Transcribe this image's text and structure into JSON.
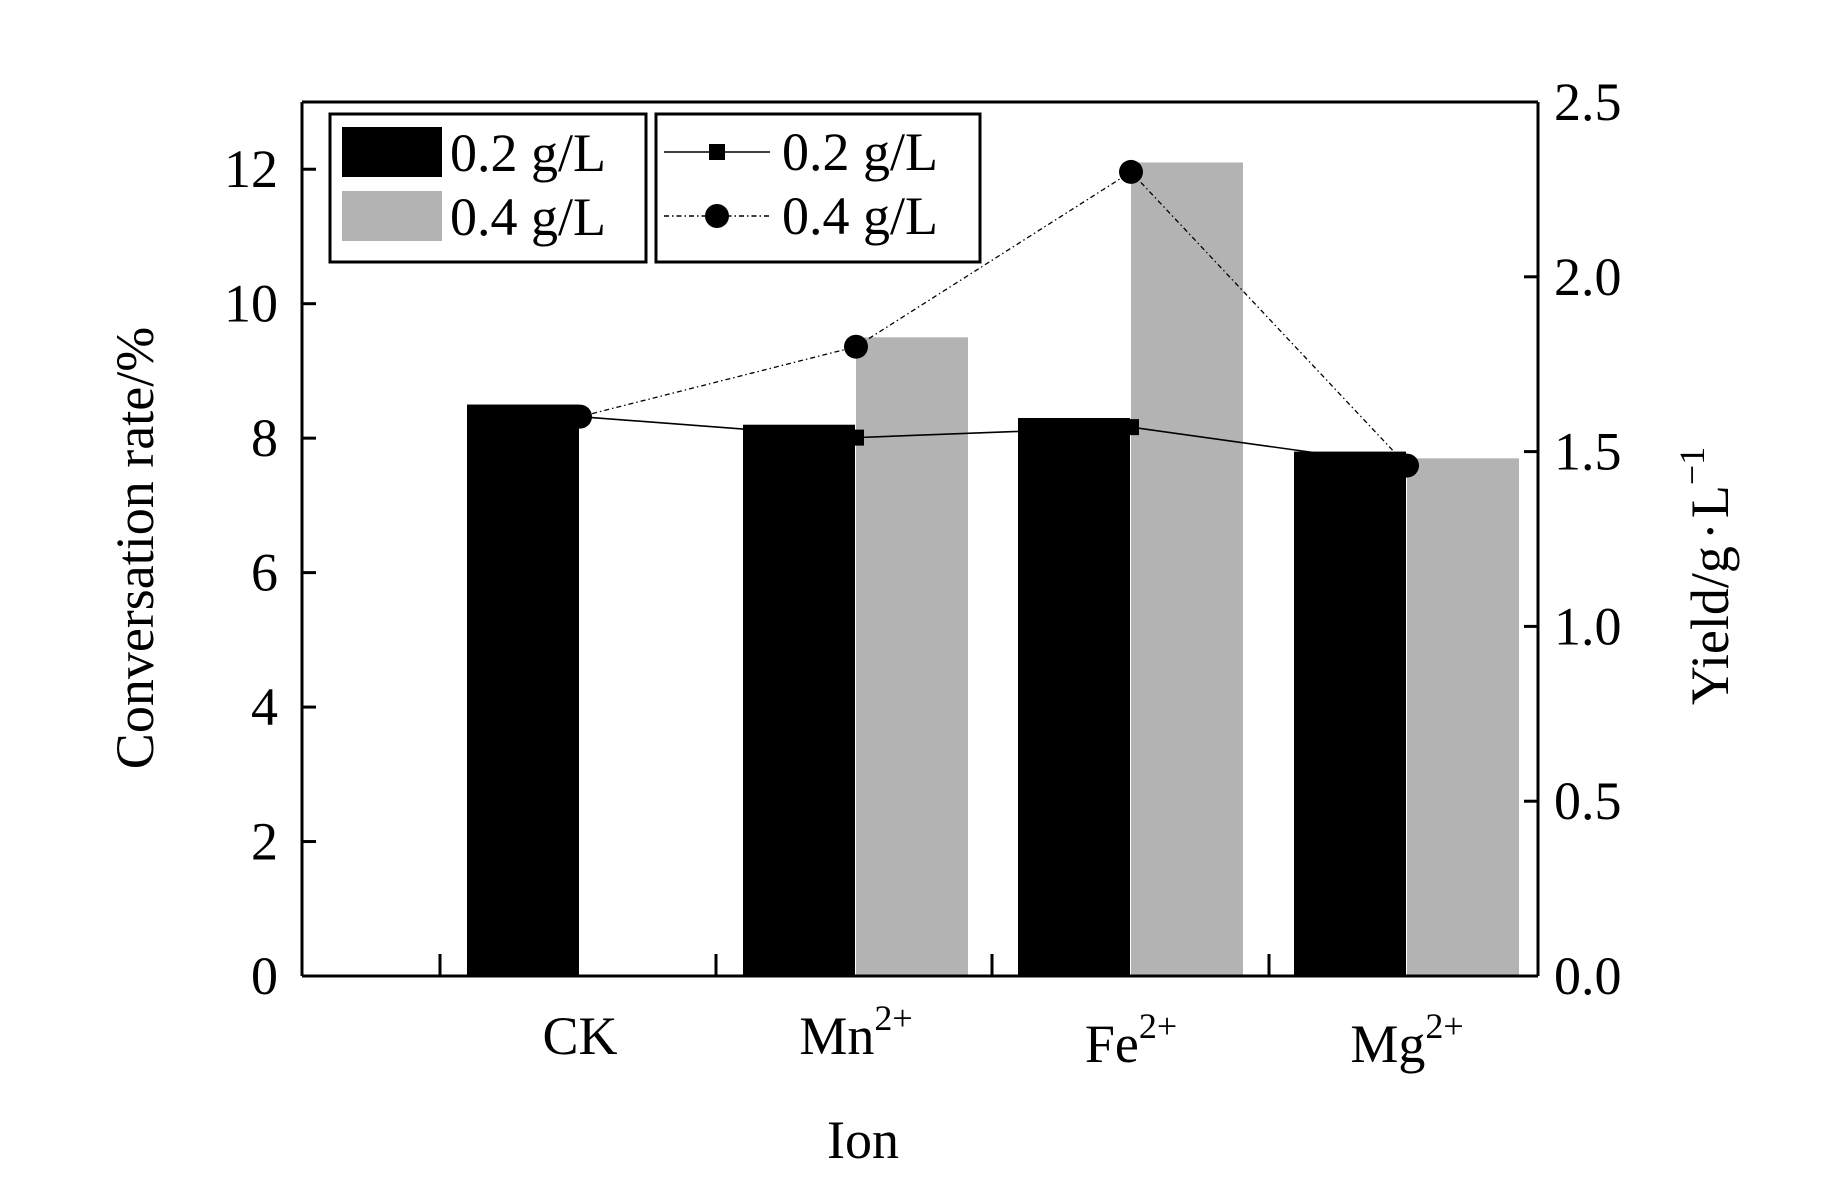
{
  "chart_data": {
    "type": "bar",
    "title": "",
    "xlabel": "Ion",
    "ylabel": "Conversation rate/%",
    "y2label": "Yield/g·L⁻¹",
    "y2label_base": "Yield/g",
    "y2label_dot": "·",
    "y2label_unit": "L",
    "y2label_exp": "−1",
    "ylim": [
      0,
      13
    ],
    "y2lim": [
      0,
      2.5
    ],
    "yticks": [
      "0",
      "2",
      "4",
      "6",
      "8",
      "10",
      "12"
    ],
    "y2ticks": [
      "0.0",
      "0.5",
      "1.0",
      "1.5",
      "2.0",
      "2.5"
    ],
    "categories": [
      {
        "base": "CK",
        "sup": ""
      },
      {
        "base": "Mn",
        "sup": "2+"
      },
      {
        "base": "Fe",
        "sup": "2+"
      },
      {
        "base": "Mg",
        "sup": "2+"
      }
    ],
    "bar_series": [
      {
        "name": "0.2 g/L",
        "color": "#000000",
        "values": [
          8.5,
          8.2,
          8.3,
          7.8
        ]
      },
      {
        "name": "0.4 g/L",
        "color": "#b3b3b3",
        "values": [
          null,
          9.5,
          12.1,
          7.7
        ]
      }
    ],
    "line_series": [
      {
        "name": "0.2 g/L",
        "marker": "square",
        "style": "solid",
        "values": [
          1.6,
          1.54,
          1.57,
          1.46
        ]
      },
      {
        "name": "0.4 g/L",
        "marker": "circle",
        "style": "dashdot",
        "values": [
          1.6,
          1.8,
          2.3,
          1.46
        ]
      }
    ],
    "legend_position": "top-left"
  }
}
